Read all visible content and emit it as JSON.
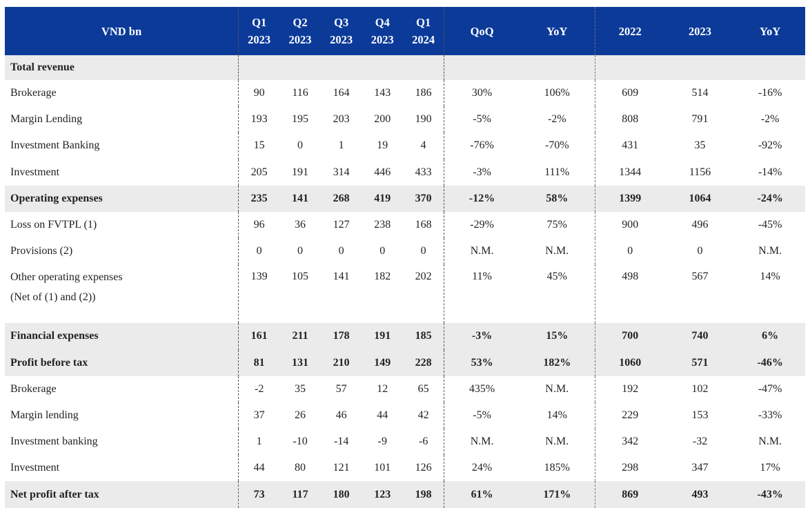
{
  "table": {
    "header": {
      "label": "VND bn",
      "quarters": [
        {
          "q": "Q1",
          "y": "2023"
        },
        {
          "q": "Q2",
          "y": "2023"
        },
        {
          "q": "Q3",
          "y": "2023"
        },
        {
          "q": "Q4",
          "y": "2023"
        },
        {
          "q": "Q1",
          "y": "2024"
        }
      ],
      "qoq": "QoQ",
      "yoy": "YoY",
      "y2022": "2022",
      "y2023": "2023",
      "yoy2": "YoY"
    },
    "rows": [
      {
        "label": "Total revenue",
        "bold": true,
        "cells": [
          "",
          "",
          "",
          "",
          "",
          "",
          "",
          "",
          "",
          ""
        ]
      },
      {
        "label": "Brokerage",
        "cells": [
          "90",
          "116",
          "164",
          "143",
          "186",
          "30%",
          "106%",
          "609",
          "514",
          "-16%"
        ]
      },
      {
        "label": "Margin Lending",
        "cells": [
          "193",
          "195",
          "203",
          "200",
          "190",
          "-5%",
          "-2%",
          "808",
          "791",
          "-2%"
        ]
      },
      {
        "label": "Investment Banking",
        "cells": [
          "15",
          "0",
          "1",
          "19",
          "4",
          "-76%",
          "-70%",
          "431",
          "35",
          "-92%"
        ]
      },
      {
        "label": "Investment",
        "cells": [
          "205",
          "191",
          "314",
          "446",
          "433",
          "-3%",
          "111%",
          "1344",
          "1156",
          "-14%"
        ]
      },
      {
        "label": "Operating expenses",
        "bold": true,
        "cells": [
          "235",
          "141",
          "268",
          "419",
          "370",
          "-12%",
          "58%",
          "1399",
          "1064",
          "-24%"
        ]
      },
      {
        "label": "Loss on FVTPL (1)",
        "cells": [
          "96",
          "36",
          "127",
          "238",
          "168",
          "-29%",
          "75%",
          "900",
          "496",
          "-45%"
        ]
      },
      {
        "label": "Provisions (2)",
        "cells": [
          "0",
          "0",
          "0",
          "0",
          "0",
          "N.M.",
          "N.M.",
          "0",
          "0",
          "N.M."
        ]
      },
      {
        "label": "Other operating expenses",
        "label2": "(Net of (1) and (2))",
        "cells": [
          "139",
          "105",
          "141",
          "182",
          "202",
          "11%",
          "45%",
          "498",
          "567",
          "14%"
        ]
      },
      {
        "label": "Financial expenses",
        "bold": true,
        "cells": [
          "161",
          "211",
          "178",
          "191",
          "185",
          "-3%",
          "15%",
          "700",
          "740",
          "6%"
        ]
      },
      {
        "label": "Profit before tax",
        "bold": true,
        "cells": [
          "81",
          "131",
          "210",
          "149",
          "228",
          "53%",
          "182%",
          "1060",
          "571",
          "-46%"
        ]
      },
      {
        "label": "Brokerage",
        "cells": [
          "-2",
          "35",
          "57",
          "12",
          "65",
          "435%",
          "N.M.",
          "192",
          "102",
          "-47%"
        ]
      },
      {
        "label": "Margin lending",
        "cells": [
          "37",
          "26",
          "46",
          "44",
          "42",
          "-5%",
          "14%",
          "229",
          "153",
          "-33%"
        ]
      },
      {
        "label": "Investment banking",
        "cells": [
          "1",
          "-10",
          "-14",
          "-9",
          "-6",
          "N.M.",
          "N.M.",
          "342",
          "-32",
          "N.M."
        ]
      },
      {
        "label": "Investment",
        "cells": [
          "44",
          "80",
          "121",
          "101",
          "126",
          "24%",
          "185%",
          "298",
          "347",
          "17%"
        ]
      },
      {
        "label": "Net profit after tax",
        "bold": true,
        "cells": [
          "73",
          "117",
          "180",
          "123",
          "198",
          "61%",
          "171%",
          "869",
          "493",
          "-43%"
        ]
      }
    ]
  },
  "colors": {
    "header_bg": "#0b3a99",
    "header_text": "#ffffff",
    "bold_row_bg": "#ebebeb"
  }
}
